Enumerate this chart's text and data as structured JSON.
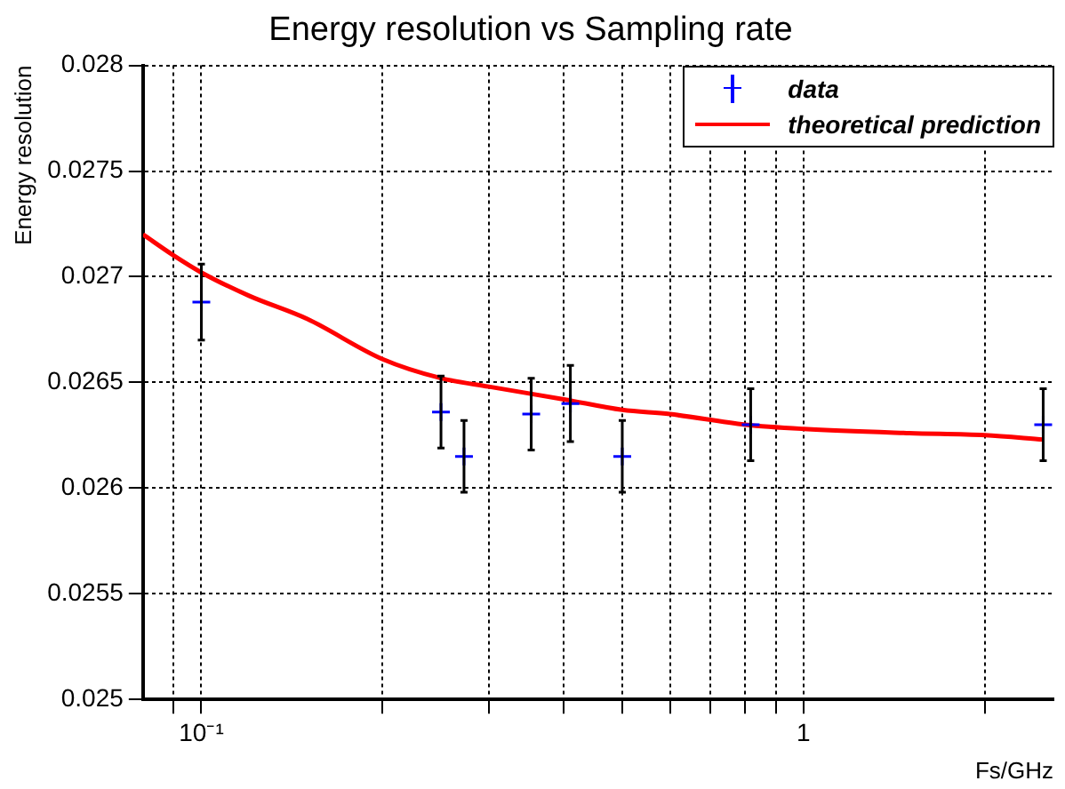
{
  "chart_data": {
    "type": "scatter",
    "title": "Energy resolution vs Sampling rate",
    "xlabel": "Fs/GHz",
    "ylabel": "Energy resolution",
    "log": "x",
    "grid": true,
    "legend": "top right",
    "xlim": [
      0.08,
      2.6
    ],
    "xticks": [
      {
        "value": 0.09,
        "label": null
      },
      {
        "value": 0.1,
        "label": "10⁻¹"
      },
      {
        "value": 0.2,
        "label": null
      },
      {
        "value": 0.3,
        "label": null
      },
      {
        "value": 0.4,
        "label": null
      },
      {
        "value": 0.5,
        "label": null
      },
      {
        "value": 0.6,
        "label": null
      },
      {
        "value": 0.7,
        "label": null
      },
      {
        "value": 0.8,
        "label": null
      },
      {
        "value": 0.9,
        "label": null
      },
      {
        "value": 1,
        "label": "1"
      },
      {
        "value": 2,
        "label": null
      }
    ],
    "ylim": [
      0.025,
      0.028
    ],
    "yticks": [
      0.025,
      0.0255,
      0.026,
      0.0265,
      0.027,
      0.0275,
      0.028
    ],
    "series": [
      {
        "name": "data",
        "color": "#0000ff",
        "marker": "cross",
        "x": [
          0.1,
          0.25,
          0.273,
          0.353,
          0.41,
          0.5,
          0.817,
          2.5
        ],
        "values": [
          0.02688,
          0.02636,
          0.02615,
          0.02635,
          0.0264,
          0.02615,
          0.0263,
          0.0263
        ],
        "errors": [
          0.00018,
          0.00017,
          0.00017,
          0.00017,
          0.00018,
          0.00017,
          0.00017,
          0.00017
        ]
      },
      {
        "name": "theoretical prediction",
        "type": "line",
        "color": "#ff0000",
        "marker": "none",
        "line_style": "solid",
        "x": [
          0.08,
          0.09,
          0.1,
          0.12,
          0.15,
          0.2,
          0.25,
          0.3,
          0.4,
          0.5,
          0.6,
          0.8,
          1,
          1.5,
          2,
          2.5
        ],
        "values": [
          0.0272,
          0.0271,
          0.02702,
          0.02691,
          0.0268,
          0.02661,
          0.02652,
          0.02648,
          0.02642,
          0.02637,
          0.02635,
          0.0263,
          0.02628,
          0.02626,
          0.02625,
          0.02623
        ]
      }
    ]
  }
}
